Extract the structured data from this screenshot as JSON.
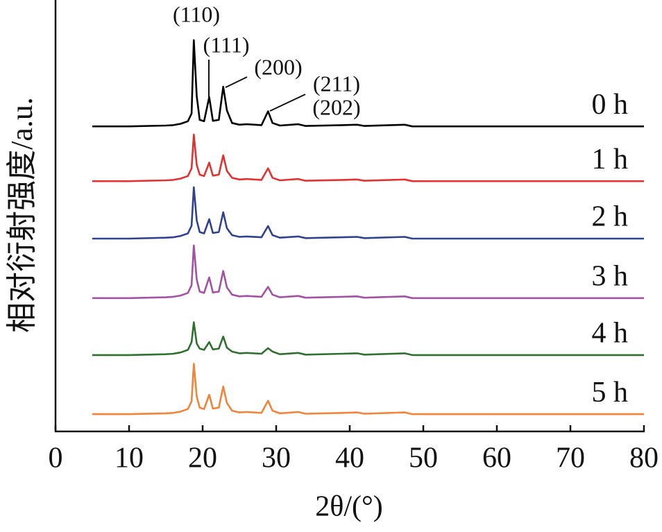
{
  "chart_data": {
    "type": "line",
    "xlabel": "2θ/(°)",
    "ylabel": "相对衍射强度/a.u.",
    "xlim": [
      0,
      80
    ],
    "xticks": [
      0,
      10,
      20,
      30,
      40,
      50,
      60,
      70,
      80
    ],
    "ylim": [
      0,
      100
    ],
    "annotations": [
      "(110)",
      "(111)",
      "(200)",
      "(211)",
      "(202)"
    ],
    "x": [
      5,
      10,
      15,
      16,
      17,
      18,
      18.5,
      18.8,
      19.2,
      19.6,
      20.2,
      20.9,
      21.4,
      22.2,
      22.8,
      23.3,
      24,
      25,
      26,
      28,
      28.9,
      29.5,
      30.5,
      33,
      34,
      39,
      41,
      42,
      47.5,
      48.5,
      60,
      80
    ],
    "series": [
      {
        "name": "0 h",
        "color": "#000000",
        "values": [
          70.7,
          70.7,
          70.9,
          71.0,
          71.3,
          71.9,
          73.7,
          90.7,
          77.7,
          72.2,
          71.9,
          77.5,
          72.0,
          72.2,
          79.9,
          74.4,
          71.5,
          71.1,
          71.2,
          71.0,
          74.2,
          71.5,
          70.9,
          71.2,
          70.8,
          71.0,
          71.1,
          70.8,
          71.1,
          70.7,
          70.7,
          70.7
        ]
      },
      {
        "name": "1 h",
        "color": "#e03232",
        "values": [
          58.0,
          58.0,
          58.2,
          58.3,
          58.6,
          59.2,
          61.0,
          68.8,
          61.8,
          59.5,
          59.2,
          62.3,
          59.3,
          59.5,
          64.0,
          60.4,
          58.8,
          58.4,
          58.5,
          58.3,
          61.0,
          58.8,
          58.2,
          58.5,
          58.1,
          58.3,
          58.4,
          58.1,
          58.4,
          58.0,
          58.0,
          58.0
        ]
      },
      {
        "name": "2 h",
        "color": "#30418f",
        "values": [
          44.7,
          44.7,
          44.9,
          45.0,
          45.3,
          45.9,
          47.7,
          56.6,
          48.9,
          46.2,
          45.9,
          49.2,
          46.0,
          46.2,
          50.8,
          47.1,
          45.5,
          45.1,
          45.2,
          45.0,
          47.6,
          45.5,
          44.9,
          45.2,
          44.8,
          45.0,
          45.1,
          44.8,
          45.1,
          44.7,
          44.7,
          44.7
        ]
      },
      {
        "name": "3 h",
        "color": "#a352a3",
        "values": [
          30.9,
          30.9,
          31.1,
          31.2,
          31.5,
          32.1,
          33.9,
          43.1,
          35.2,
          32.4,
          32.1,
          35.7,
          32.2,
          32.4,
          37.2,
          33.4,
          31.7,
          31.3,
          31.4,
          31.2,
          33.5,
          31.7,
          31.1,
          31.4,
          31.0,
          31.2,
          31.3,
          31.0,
          31.3,
          30.9,
          30.9,
          30.9
        ]
      },
      {
        "name": "4 h",
        "color": "#2f6f30",
        "values": [
          17.7,
          17.7,
          17.9,
          18.0,
          18.3,
          18.9,
          20.7,
          25.3,
          20.4,
          19.2,
          18.9,
          20.7,
          19.0,
          19.2,
          22.0,
          19.4,
          18.5,
          18.1,
          18.2,
          18.0,
          19.3,
          18.5,
          17.9,
          18.2,
          17.8,
          18.0,
          18.1,
          17.8,
          18.1,
          17.7,
          17.7,
          17.7
        ]
      },
      {
        "name": "5 h",
        "color": "#f0843a",
        "values": [
          4.0,
          4.0,
          4.2,
          4.3,
          4.6,
          5.2,
          7.0,
          15.7,
          8.1,
          5.5,
          5.2,
          8.5,
          5.3,
          5.5,
          10.4,
          6.6,
          4.8,
          4.4,
          4.5,
          4.3,
          7.1,
          4.8,
          4.2,
          4.5,
          4.1,
          4.3,
          4.4,
          4.1,
          4.4,
          4.0,
          4.0,
          4.0
        ]
      }
    ]
  }
}
